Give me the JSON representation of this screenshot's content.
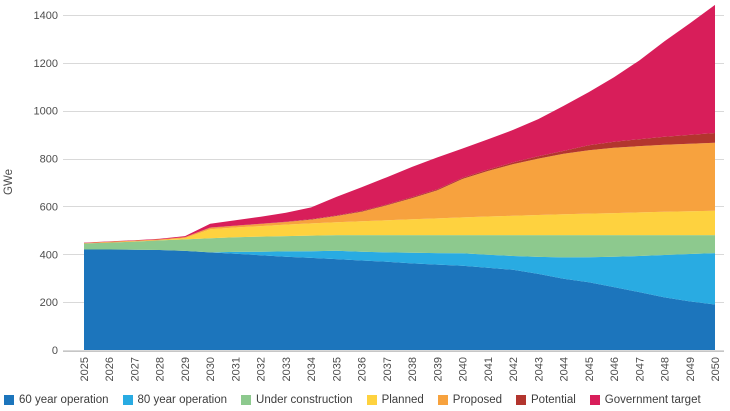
{
  "chart_data": {
    "type": "area",
    "stacked": true,
    "title": "",
    "xlabel": "",
    "ylabel": "GWe",
    "ylim": [
      0,
      1400
    ],
    "yticks": [
      0,
      200,
      400,
      600,
      800,
      1000,
      1200,
      1400
    ],
    "grid": "horizontal",
    "legend_position": "bottom",
    "x": [
      2025,
      2026,
      2027,
      2028,
      2029,
      2030,
      2031,
      2032,
      2033,
      2034,
      2035,
      2036,
      2037,
      2038,
      2039,
      2040,
      2041,
      2042,
      2043,
      2044,
      2045,
      2046,
      2047,
      2048,
      2049,
      2050
    ],
    "series": [
      {
        "name": "60 year operation",
        "color": "#1C75BC",
        "values": [
          420,
          420,
          419,
          418,
          414,
          408,
          402,
          396,
          390,
          385,
          380,
          374,
          369,
          362,
          357,
          352,
          344,
          335,
          318,
          298,
          283,
          263,
          242,
          220,
          203,
          190
        ]
      },
      {
        "name": "80 year operation",
        "color": "#29ABE2",
        "values": [
          0,
          0,
          0,
          0,
          0,
          0,
          8,
          15,
          22,
          28,
          35,
          37,
          39,
          44,
          48,
          52,
          54,
          58,
          71,
          89,
          105,
          127,
          151,
          177,
          198,
          215
        ]
      },
      {
        "name": "Under construction",
        "color": "#8DC98E",
        "values": [
          25,
          29,
          34,
          40,
          48,
          59,
          61,
          63,
          64,
          65,
          65,
          69,
          72,
          74,
          75,
          76,
          82,
          87,
          91,
          93,
          92,
          90,
          87,
          83,
          79,
          75
        ]
      },
      {
        "name": "Planned",
        "color": "#FED23F",
        "values": [
          0,
          0,
          1,
          1,
          6,
          38,
          41,
          44,
          48,
          51,
          54,
          58,
          62,
          66,
          70,
          74,
          78,
          81,
          84,
          87,
          90,
          92,
          95,
          98,
          100,
          102
        ]
      },
      {
        "name": "Proposed",
        "color": "#F7A23E",
        "values": [
          2,
          3,
          3,
          3,
          4,
          6,
          7,
          9,
          11,
          16,
          26,
          40,
          63,
          89,
          118,
          161,
          190,
          216,
          236,
          253,
          265,
          273,
          277,
          280,
          282,
          284
        ]
      },
      {
        "name": "Potential",
        "color": "#B3352E",
        "values": [
          0,
          0,
          0,
          0,
          0,
          1,
          1,
          1,
          1,
          2,
          2,
          3,
          3,
          4,
          4,
          5,
          6,
          7,
          10,
          12,
          21,
          25,
          29,
          33,
          37,
          41
        ]
      },
      {
        "name": "Government target",
        "color": "#D81E5A",
        "values": [
          2,
          2,
          2,
          3,
          4,
          16,
          22,
          29,
          38,
          49,
          78,
          99,
          114,
          126,
          133,
          122,
          126,
          136,
          155,
          188,
          222,
          270,
          329,
          399,
          466,
          535
        ]
      }
    ]
  },
  "colors": {
    "background": "#FFFFFF",
    "gridline": "#D9D9D9",
    "axis_line": "#C6C6C6",
    "axis_text": "#4D4D4D",
    "legend_text": "#3D3D3D"
  }
}
